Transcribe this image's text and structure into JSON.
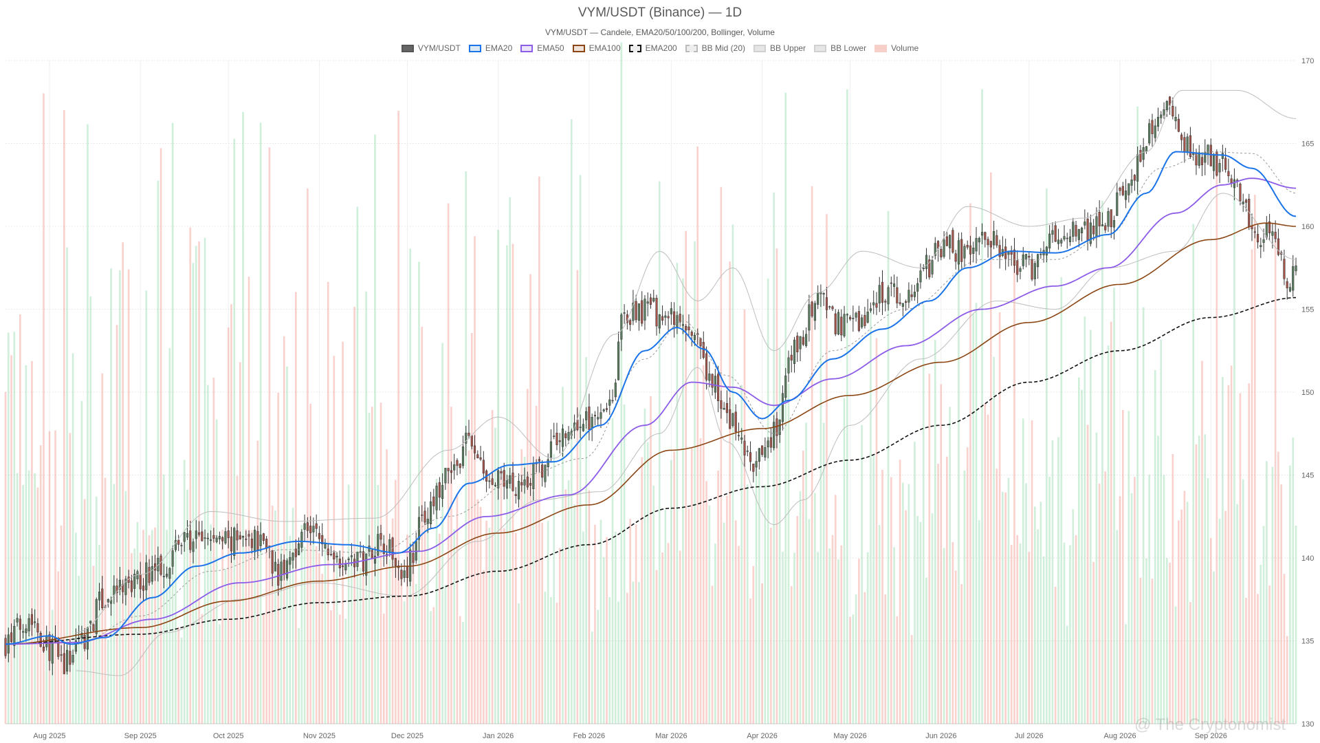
{
  "title": "VYM/USDT (Binance) — 1D",
  "subtitle": "VYM/USDT — Candele, EMA20/50/100/200, Bollinger, Volume",
  "watermark": "@ The Cryptonomist",
  "legend": [
    {
      "label": "VYM/USDT",
      "fill": "#666666",
      "border": "#555555",
      "dashed": false
    },
    {
      "label": "EMA20",
      "fill": "#dbe9f7",
      "border": "#1a73e8",
      "dashed": false
    },
    {
      "label": "EMA50",
      "fill": "#ece4fa",
      "border": "#8c5be8",
      "dashed": false
    },
    {
      "label": "EMA100",
      "fill": "#efe2d8",
      "border": "#8b4513",
      "dashed": false
    },
    {
      "label": "EMA200",
      "fill": "#eeeeee",
      "border": "#111111",
      "dashed": true
    },
    {
      "label": "BB Mid (20)",
      "fill": "#eeeeee",
      "border": "#bbbbbb",
      "dashed": true
    },
    {
      "label": "BB Upper",
      "fill": "#e6e6e6",
      "border": "#d0d0d0",
      "dashed": false
    },
    {
      "label": "BB Lower",
      "fill": "#e6e6e6",
      "border": "#d0d0d0",
      "dashed": false
    },
    {
      "label": "Volume",
      "fill": "#f8cfc8",
      "border": "#f8cfc8",
      "dashed": false
    }
  ],
  "colors": {
    "up": "#5a7d5f",
    "down": "#a4544a",
    "wick": "#333333",
    "ema20": "#1a73e8",
    "ema50": "#8c5be8",
    "ema100": "#8b4513",
    "ema200": "#111111",
    "bb": "#bdbdbd",
    "vol_up": "rgba(120,210,150,0.35)",
    "vol_down": "rgba(240,140,130,0.40)",
    "grid": "#e8e8e8"
  },
  "chart_data": {
    "type": "candlestick",
    "x_tick_labels": [
      "Aug 2025",
      "Sep 2025",
      "Oct 2025",
      "Nov 2025",
      "Dec 2025",
      "Jan 2026",
      "Feb 2026",
      "Mar 2026",
      "Apr 2026",
      "May 2026",
      "Jun 2026",
      "Jul 2026",
      "Aug 2026",
      "Sep 2026"
    ],
    "x_range": [
      "2025-07-17",
      "2026-09-30"
    ],
    "y_ticks": [
      130,
      135,
      140,
      145,
      150,
      155,
      160,
      165,
      170
    ],
    "ylim": [
      130,
      170
    ],
    "y_axis_side": "right",
    "grid": true,
    "legend_position": "top-center",
    "series": [
      "VYM/USDT",
      "EMA20",
      "EMA50",
      "EMA100",
      "EMA200",
      "BB Mid (20)",
      "BB Upper",
      "BB Lower",
      "Volume"
    ],
    "close_anchors": [
      [
        "2025-07-17",
        134.9
      ],
      [
        "2025-07-25",
        136.5
      ],
      [
        "2025-08-01",
        134.6
      ],
      [
        "2025-08-06",
        133.6
      ],
      [
        "2025-08-12",
        135.2
      ],
      [
        "2025-08-20",
        137.5
      ],
      [
        "2025-08-28",
        138.3
      ],
      [
        "2025-09-08",
        139.5
      ],
      [
        "2025-09-15",
        141.0
      ],
      [
        "2025-09-25",
        141.1
      ],
      [
        "2025-10-05",
        141.0
      ],
      [
        "2025-10-13",
        141.2
      ],
      [
        "2025-10-18",
        139.0
      ],
      [
        "2025-10-28",
        141.8
      ],
      [
        "2025-11-05",
        140.3
      ],
      [
        "2025-11-14",
        139.8
      ],
      [
        "2025-11-22",
        141.1
      ],
      [
        "2025-11-30",
        139.4
      ],
      [
        "2025-12-08",
        142.8
      ],
      [
        "2025-12-15",
        144.9
      ],
      [
        "2025-12-22",
        147.0
      ],
      [
        "2025-12-29",
        144.5
      ],
      [
        "2026-01-06",
        144.5
      ],
      [
        "2026-01-15",
        145.2
      ],
      [
        "2026-01-22",
        147.4
      ],
      [
        "2026-01-30",
        148.2
      ],
      [
        "2026-02-08",
        149.5
      ],
      [
        "2026-02-13",
        154.5
      ],
      [
        "2026-02-21",
        155.0
      ],
      [
        "2026-03-01",
        154.3
      ],
      [
        "2026-03-08",
        153.5
      ],
      [
        "2026-03-14",
        150.8
      ],
      [
        "2026-03-22",
        148.0
      ],
      [
        "2026-03-29",
        145.5
      ],
      [
        "2026-04-05",
        147.5
      ],
      [
        "2026-04-12",
        152.5
      ],
      [
        "2026-04-20",
        155.5
      ],
      [
        "2026-04-28",
        154.0
      ],
      [
        "2026-05-05",
        154.4
      ],
      [
        "2026-05-12",
        156.0
      ],
      [
        "2026-05-20",
        155.7
      ],
      [
        "2026-05-27",
        157.5
      ],
      [
        "2026-06-02",
        159.0
      ],
      [
        "2026-06-09",
        158.2
      ],
      [
        "2026-06-16",
        159.5
      ],
      [
        "2026-06-24",
        157.8
      ],
      [
        "2026-07-02",
        157.6
      ],
      [
        "2026-07-09",
        159.2
      ],
      [
        "2026-07-18",
        159.7
      ],
      [
        "2026-07-27",
        160.3
      ],
      [
        "2026-08-04",
        162.3
      ],
      [
        "2026-08-10",
        165.5
      ],
      [
        "2026-08-17",
        166.8
      ],
      [
        "2026-08-23",
        164.8
      ],
      [
        "2026-08-29",
        164.3
      ],
      [
        "2026-09-05",
        163.7
      ],
      [
        "2026-09-11",
        162.3
      ],
      [
        "2026-09-17",
        159.2
      ],
      [
        "2026-09-22",
        159.6
      ],
      [
        "2026-09-27",
        157.0
      ],
      [
        "2026-09-30",
        157.0
      ]
    ],
    "ema20_anchors": [
      [
        "2025-07-17",
        134.8
      ],
      [
        "2025-08-01",
        135.3
      ],
      [
        "2025-08-08",
        134.8
      ],
      [
        "2025-08-20",
        135.2
      ],
      [
        "2025-09-05",
        137.6
      ],
      [
        "2025-09-20",
        139.5
      ],
      [
        "2025-10-05",
        140.3
      ],
      [
        "2025-10-25",
        141.0
      ],
      [
        "2025-11-10",
        140.8
      ],
      [
        "2025-11-28",
        140.3
      ],
      [
        "2025-12-10",
        141.8
      ],
      [
        "2025-12-22",
        144.5
      ],
      [
        "2026-01-05",
        145.6
      ],
      [
        "2026-01-20",
        145.8
      ],
      [
        "2026-02-05",
        148.0
      ],
      [
        "2026-02-20",
        152.5
      ],
      [
        "2026-03-03",
        153.9
      ],
      [
        "2026-03-12",
        152.6
      ],
      [
        "2026-03-22",
        150.0
      ],
      [
        "2026-04-01",
        148.4
      ],
      [
        "2026-04-10",
        149.5
      ],
      [
        "2026-04-25",
        152.0
      ],
      [
        "2026-05-12",
        153.8
      ],
      [
        "2026-05-28",
        155.5
      ],
      [
        "2026-06-10",
        157.5
      ],
      [
        "2026-06-25",
        158.5
      ],
      [
        "2026-07-10",
        158.4
      ],
      [
        "2026-07-28",
        159.5
      ],
      [
        "2026-08-10",
        162.0
      ],
      [
        "2026-08-20",
        164.5
      ],
      [
        "2026-09-05",
        164.3
      ],
      [
        "2026-09-15",
        163.5
      ],
      [
        "2026-09-30",
        160.6
      ]
    ],
    "ema50_anchors": [
      [
        "2025-07-17",
        134.8
      ],
      [
        "2025-08-10",
        134.9
      ],
      [
        "2025-09-05",
        136.3
      ],
      [
        "2025-10-05",
        138.5
      ],
      [
        "2025-11-05",
        139.6
      ],
      [
        "2025-12-05",
        140.4
      ],
      [
        "2025-12-28",
        142.5
      ],
      [
        "2026-01-25",
        143.8
      ],
      [
        "2026-02-20",
        148.0
      ],
      [
        "2026-03-08",
        150.6
      ],
      [
        "2026-03-22",
        150.3
      ],
      [
        "2026-04-05",
        149.2
      ],
      [
        "2026-04-25",
        150.8
      ],
      [
        "2026-05-20",
        152.8
      ],
      [
        "2026-06-15",
        155.0
      ],
      [
        "2026-07-10",
        156.4
      ],
      [
        "2026-07-28",
        157.5
      ],
      [
        "2026-08-20",
        160.8
      ],
      [
        "2026-09-05",
        162.5
      ],
      [
        "2026-09-15",
        162.9
      ],
      [
        "2026-09-30",
        162.3
      ]
    ],
    "ema100_anchors": [
      [
        "2025-07-17",
        134.8
      ],
      [
        "2025-09-01",
        135.8
      ],
      [
        "2025-10-01",
        137.4
      ],
      [
        "2025-11-01",
        138.6
      ],
      [
        "2025-12-01",
        139.5
      ],
      [
        "2026-01-01",
        141.5
      ],
      [
        "2026-02-01",
        143.2
      ],
      [
        "2026-03-01",
        146.5
      ],
      [
        "2026-04-01",
        147.8
      ],
      [
        "2026-05-01",
        149.8
      ],
      [
        "2026-06-01",
        151.8
      ],
      [
        "2026-07-01",
        154.2
      ],
      [
        "2026-08-01",
        156.5
      ],
      [
        "2026-09-01",
        159.2
      ],
      [
        "2026-09-20",
        160.2
      ],
      [
        "2026-09-30",
        160.0
      ]
    ],
    "ema200_anchors": [
      [
        "2025-07-17",
        134.8
      ],
      [
        "2025-09-01",
        135.4
      ],
      [
        "2025-10-01",
        136.3
      ],
      [
        "2025-11-01",
        137.3
      ],
      [
        "2025-12-01",
        137.7
      ],
      [
        "2026-01-01",
        139.2
      ],
      [
        "2026-02-01",
        140.8
      ],
      [
        "2026-03-01",
        143.0
      ],
      [
        "2026-04-01",
        144.3
      ],
      [
        "2026-05-01",
        145.9
      ],
      [
        "2026-06-01",
        148.0
      ],
      [
        "2026-07-01",
        150.6
      ],
      [
        "2026-08-01",
        152.5
      ],
      [
        "2026-09-01",
        154.5
      ],
      [
        "2026-09-30",
        155.7
      ]
    ],
    "bb_mid_anchors": [
      [
        "2025-08-10",
        134.8
      ],
      [
        "2025-09-01",
        136.5
      ],
      [
        "2025-09-25",
        139.2
      ],
      [
        "2025-10-20",
        140.5
      ],
      [
        "2025-11-20",
        140.3
      ],
      [
        "2025-12-15",
        142.5
      ],
      [
        "2026-01-10",
        145.0
      ],
      [
        "2026-01-30",
        146.0
      ],
      [
        "2026-02-20",
        152.0
      ],
      [
        "2026-03-05",
        154.3
      ],
      [
        "2026-03-20",
        151.0
      ],
      [
        "2026-04-05",
        147.5
      ],
      [
        "2026-04-25",
        152.5
      ],
      [
        "2026-05-20",
        155.0
      ],
      [
        "2026-06-15",
        158.0
      ],
      [
        "2026-07-10",
        158.0
      ],
      [
        "2026-07-28",
        159.5
      ],
      [
        "2026-08-15",
        163.5
      ],
      [
        "2026-09-01",
        164.5
      ],
      [
        "2026-09-15",
        164.4
      ],
      [
        "2026-09-30",
        162.0
      ]
    ],
    "bb_upper_anchors": [
      [
        "2025-08-10",
        135.5
      ],
      [
        "2025-09-01",
        139.0
      ],
      [
        "2025-09-25",
        142.8
      ],
      [
        "2025-10-20",
        142.2
      ],
      [
        "2025-11-20",
        142.4
      ],
      [
        "2025-12-15",
        146.5
      ],
      [
        "2026-01-01",
        148.5
      ],
      [
        "2026-01-20",
        146.0
      ],
      [
        "2026-02-10",
        153.5
      ],
      [
        "2026-02-25",
        158.5
      ],
      [
        "2026-03-10",
        155.5
      ],
      [
        "2026-03-22",
        157.5
      ],
      [
        "2026-04-05",
        152.5
      ],
      [
        "2026-04-20",
        156.0
      ],
      [
        "2026-05-05",
        158.5
      ],
      [
        "2026-05-25",
        157.5
      ],
      [
        "2026-06-10",
        161.2
      ],
      [
        "2026-07-01",
        160.0
      ],
      [
        "2026-07-20",
        160.5
      ],
      [
        "2026-08-10",
        164.5
      ],
      [
        "2026-08-22",
        168.2
      ],
      [
        "2026-09-10",
        168.2
      ],
      [
        "2026-09-30",
        166.5
      ]
    ],
    "bb_lower_anchors": [
      [
        "2025-08-10",
        133.2
      ],
      [
        "2025-08-25",
        132.9
      ],
      [
        "2025-09-10",
        135.5
      ],
      [
        "2025-10-05",
        137.5
      ],
      [
        "2025-11-01",
        138.5
      ],
      [
        "2025-11-30",
        137.7
      ],
      [
        "2025-12-25",
        141.0
      ],
      [
        "2026-01-15",
        143.5
      ],
      [
        "2026-02-05",
        144.0
      ],
      [
        "2026-02-25",
        147.5
      ],
      [
        "2026-03-10",
        151.5
      ],
      [
        "2026-03-20",
        147.0
      ],
      [
        "2026-04-05",
        142.0
      ],
      [
        "2026-04-15",
        143.5
      ],
      [
        "2026-05-01",
        148.0
      ],
      [
        "2026-05-25",
        152.0
      ],
      [
        "2026-06-20",
        155.5
      ],
      [
        "2026-07-10",
        155.0
      ],
      [
        "2026-07-28",
        157.5
      ],
      [
        "2026-08-20",
        158.5
      ],
      [
        "2026-09-05",
        162.0
      ],
      [
        "2026-09-30",
        158.0
      ]
    ]
  }
}
